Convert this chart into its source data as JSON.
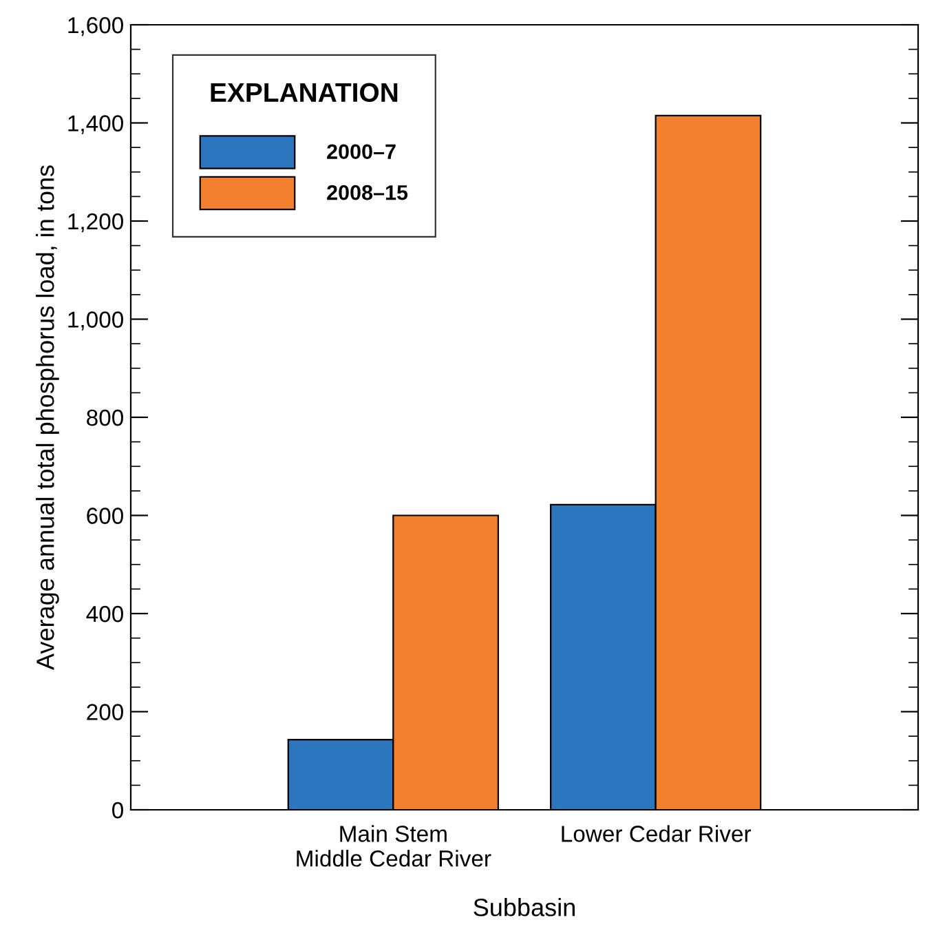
{
  "chart_data": {
    "type": "bar",
    "xlabel": "Subbasin",
    "ylabel": "Average annual total phosphorus load, in tons",
    "legend_title": "EXPLANATION",
    "legend": "top left",
    "grid": false,
    "categories": [
      "Main Stem\nMiddle Cedar River",
      "Lower Cedar River"
    ],
    "series": [
      {
        "name": "2000–7",
        "color": "#2b76bd",
        "values": [
          143,
          622
        ]
      },
      {
        "name": "2008–15",
        "color": "#f3802f",
        "values": [
          600,
          1415
        ]
      }
    ],
    "ylim": [
      0,
      1600
    ],
    "yticks": [
      0,
      {
        "value": 50,
        "label": null
      },
      {
        "value": 100,
        "label": null
      },
      {
        "value": 150,
        "label": null
      },
      200,
      {
        "value": 250,
        "label": null
      },
      {
        "value": 300,
        "label": null
      },
      {
        "value": 350,
        "label": null
      },
      400,
      {
        "value": 450,
        "label": null
      },
      {
        "value": 500,
        "label": null
      },
      {
        "value": 550,
        "label": null
      },
      600,
      {
        "value": 650,
        "label": null
      },
      {
        "value": 700,
        "label": null
      },
      {
        "value": 750,
        "label": null
      },
      800,
      {
        "value": 850,
        "label": null
      },
      {
        "value": 900,
        "label": null
      },
      {
        "value": 950,
        "label": null
      },
      {
        "value": 1000,
        "label": "1,000"
      },
      {
        "value": 1050,
        "label": null
      },
      {
        "value": 1100,
        "label": null
      },
      {
        "value": 1150,
        "label": null
      },
      {
        "value": 1200,
        "label": "1,200"
      },
      {
        "value": 1250,
        "label": null
      },
      {
        "value": 1300,
        "label": null
      },
      {
        "value": 1350,
        "label": null
      },
      {
        "value": 1400,
        "label": "1,400"
      },
      {
        "value": 1450,
        "label": null
      },
      {
        "value": 1500,
        "label": null
      },
      {
        "value": 1550,
        "label": null
      },
      {
        "value": 1600,
        "label": "1,600"
      }
    ]
  }
}
